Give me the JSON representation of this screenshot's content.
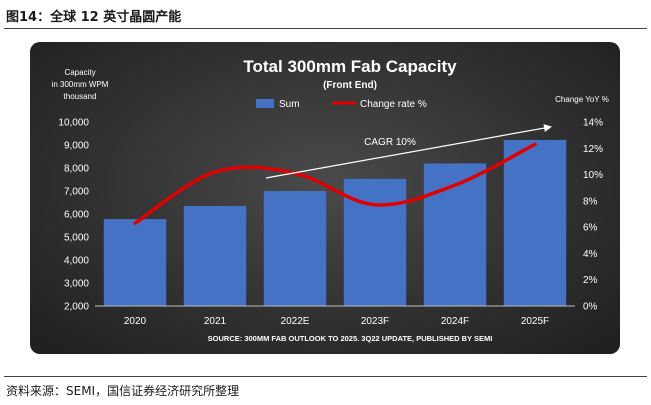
{
  "figure_title": "图14：全球 12 英寸晶圆产能",
  "source_note": "资料来源：SEMI，国信证券经济研究所整理",
  "chart_data": {
    "type": "bar",
    "title": "Total 300mm Fab Capacity",
    "subtitle": "(Front End)",
    "categories": [
      "2020",
      "2021",
      "2022E",
      "2023F",
      "2024F",
      "2025F"
    ],
    "series": [
      {
        "name": "Sum",
        "kind": "bar",
        "axis": "left",
        "color": "#4472C4",
        "values": [
          5780,
          6350,
          7000,
          7530,
          8200,
          9220
        ]
      },
      {
        "name": "Change rate %",
        "kind": "line",
        "axis": "right",
        "color": "#E00000",
        "values": [
          6.3,
          10.2,
          10.1,
          7.7,
          9.2,
          12.3
        ]
      }
    ],
    "ylabel_left": "Capacity in 300mm WPM thousand",
    "ylabel_right": "Change YoY %",
    "ylim_left": [
      2000,
      10000
    ],
    "yticks_left": [
      "2,000",
      "3,000",
      "4,000",
      "5,000",
      "6,000",
      "7,000",
      "8,000",
      "9,000",
      "10,000"
    ],
    "ylim_right": [
      0,
      14
    ],
    "yticks_right": [
      "0%",
      "2%",
      "4%",
      "6%",
      "8%",
      "10%",
      "12%",
      "14%"
    ],
    "annotation": "CAGR 10%",
    "source": "SOURCE: 300MM FAB OUTLOOK TO 2025. 3Q22 UPDATE, PUBLISHED BY SEMI",
    "legend_position": "top-center",
    "grid": false
  }
}
